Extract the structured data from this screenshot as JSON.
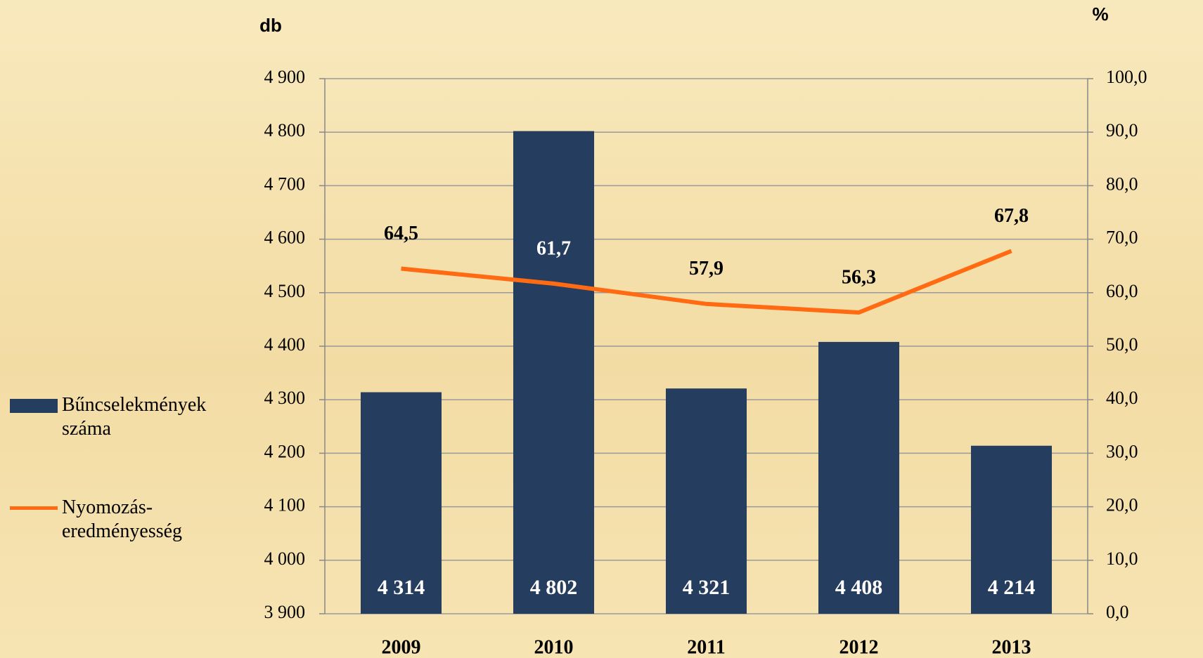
{
  "chart_data": {
    "type": "bar+line",
    "y_axis_title": "db",
    "y2_axis_title": "%",
    "categories": [
      "2009",
      "2010",
      "2011",
      "2012",
      "2013"
    ],
    "series": [
      {
        "name": "Bűncselekmények száma",
        "type": "bar",
        "color": "#253d5e",
        "values": [
          4314,
          4802,
          4321,
          4408,
          4214
        ],
        "value_labels": [
          "4 314",
          "4 802",
          "4 321",
          "4 408",
          "4 214"
        ]
      },
      {
        "name": "Nyomozás-eredményesség",
        "type": "line",
        "axis": "y2",
        "color": "#ff6a13",
        "values": [
          64.5,
          61.7,
          57.9,
          56.3,
          67.8
        ],
        "value_labels": [
          "64,5",
          "61,7",
          "57,9",
          "56,3",
          "67,8"
        ]
      }
    ],
    "ylim": [
      3900,
      4900
    ],
    "yticks": [
      {
        "value": 3900,
        "label": "3 900"
      },
      {
        "value": 4000,
        "label": "4 000"
      },
      {
        "value": 4100,
        "label": "4 100"
      },
      {
        "value": 4200,
        "label": "4 200"
      },
      {
        "value": 4300,
        "label": "4 300"
      },
      {
        "value": 4400,
        "label": "4 400"
      },
      {
        "value": 4500,
        "label": "4 500"
      },
      {
        "value": 4600,
        "label": "4 600"
      },
      {
        "value": 4700,
        "label": "4 700"
      },
      {
        "value": 4800,
        "label": "4 800"
      },
      {
        "value": 4900,
        "label": "4 900"
      }
    ],
    "y2lim": [
      0,
      100
    ],
    "y2ticks": [
      {
        "value": 0,
        "label": "0,0"
      },
      {
        "value": 10,
        "label": "10,0"
      },
      {
        "value": 20,
        "label": "20,0"
      },
      {
        "value": 30,
        "label": "30,0"
      },
      {
        "value": 40,
        "label": "40,0"
      },
      {
        "value": 50,
        "label": "50,0"
      },
      {
        "value": 60,
        "label": "60,0"
      },
      {
        "value": 70,
        "label": "70,0"
      },
      {
        "value": 80,
        "label": "80,0"
      },
      {
        "value": 90,
        "label": "90,0"
      },
      {
        "value": 100,
        "label": "100,0"
      }
    ],
    "grid": true,
    "legend": "left"
  }
}
